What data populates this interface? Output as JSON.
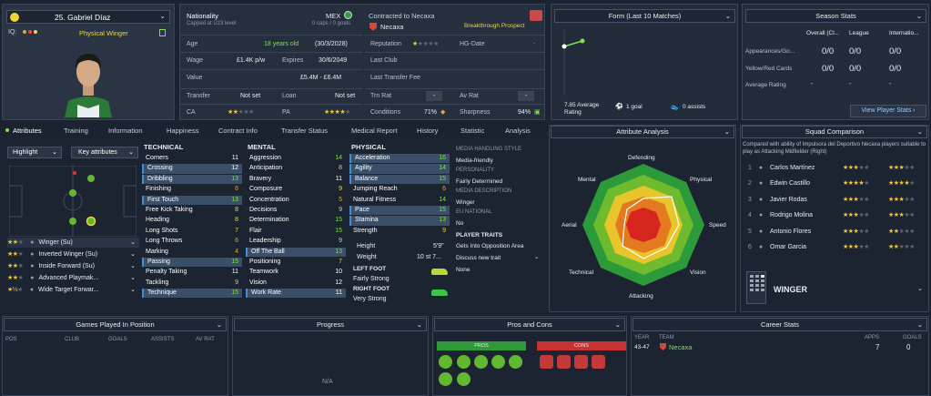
{
  "player": {
    "name": "25. Gabriel Díaz",
    "role": "Physical Winger",
    "iq_label": "IQ:"
  },
  "nation": {
    "label": "Nationality",
    "caps_note": "Capped at U23 level",
    "code": "MEX",
    "caps": "0 caps / 0 goals"
  },
  "contract": {
    "header": "Contracted to Necaxa",
    "club": "Necaxa",
    "tag": "Breakthrough Prospect"
  },
  "info": {
    "age_label": "Age",
    "age": "18 years old",
    "dob": "(30/3/2028)",
    "wage_label": "Wage",
    "wage": "£1.4K p/w",
    "expires_label": "Expires",
    "expires": "30/6/2049",
    "value_label": "Value",
    "value": "£5.4M - £6.4M",
    "transfer_label": "Transfer",
    "transfer": "Not set",
    "loan_label": "Loan",
    "loan": "Not set",
    "ca_label": "CA",
    "pa_label": "PA",
    "reputation_label": "Reputation",
    "hgdate_label": "HG-Date",
    "lastclub_label": "Last Club",
    "lastfee_label": "Last Transfer Fee",
    "trnrat_label": "Trn Rat",
    "trnrat": "-",
    "avrat_label": "Av Rat",
    "avrat": "-",
    "conditions_label": "Conditions",
    "conditions": "71%",
    "sharpness_label": "Sharpness",
    "sharpness": "94%"
  },
  "form": {
    "title": "Form (Last 10 Matches)",
    "avg": "7.85 Average Rating",
    "goals": "1 goal",
    "assists": "0 assists"
  },
  "season": {
    "title": "Season Stats",
    "cols": [
      "Overall (Cl...",
      "League",
      "Internatio..."
    ],
    "rows": [
      {
        "label": "Appearances/Go...",
        "v": [
          "0/0",
          "0/0",
          "0/0"
        ]
      },
      {
        "label": "Yellow/Red Cards",
        "v": [
          "0/0",
          "0/0",
          "0/0"
        ]
      },
      {
        "label": "Average Rating",
        "v": [
          "-",
          "-",
          "-"
        ]
      }
    ],
    "button": "View Player Stats"
  },
  "tabs": [
    "Attributes",
    "Training",
    "Information",
    "Happiness",
    "Contract Info",
    "Transfer Status",
    "Medical Report",
    "History",
    "Statistic",
    "Analysis"
  ],
  "controls": {
    "highlight": "Highlight",
    "key_attr": "Key attributes"
  },
  "roles": [
    "Winger (Su)",
    "Inverted Winger (Su)",
    "Inside Forward (Su)",
    "Advanced Playmak...",
    "Wide Target Forwar..."
  ],
  "technical": {
    "title": "TECHNICAL",
    "items": [
      [
        "Corners",
        "11"
      ],
      [
        "Crossing",
        "12"
      ],
      [
        "Dribbling",
        "13"
      ],
      [
        "Finishing",
        "6"
      ],
      [
        "First Touch",
        "13"
      ],
      [
        "Free Kick Taking",
        "8"
      ],
      [
        "Heading",
        "8"
      ],
      [
        "Long Shots",
        "7"
      ],
      [
        "Long Throws",
        "6"
      ],
      [
        "Marking",
        "4"
      ],
      [
        "Passing",
        "15"
      ],
      [
        "Penalty Taking",
        "11"
      ],
      [
        "Tackling",
        "9"
      ],
      [
        "Technique",
        "15"
      ]
    ]
  },
  "mental": {
    "title": "MENTAL",
    "items": [
      [
        "Aggression",
        "14"
      ],
      [
        "Anticipation",
        "8"
      ],
      [
        "Bravery",
        "11"
      ],
      [
        "Composure",
        "9"
      ],
      [
        "Concentration",
        "5"
      ],
      [
        "Decisions",
        "9"
      ],
      [
        "Determination",
        "15"
      ],
      [
        "Flair",
        "15"
      ],
      [
        "Leadership",
        "9"
      ],
      [
        "Off The Ball",
        "13"
      ],
      [
        "Positioning",
        "7"
      ],
      [
        "Teamwork",
        "10"
      ],
      [
        "Vision",
        "12"
      ],
      [
        "Work Rate",
        "11"
      ]
    ]
  },
  "physical": {
    "title": "PHYSICAL",
    "items": [
      [
        "Acceleration",
        "16"
      ],
      [
        "Agility",
        "14"
      ],
      [
        "Balance",
        "15"
      ],
      [
        "Jumping Reach",
        "6"
      ],
      [
        "Natural Fitness",
        "14"
      ],
      [
        "Pace",
        "15"
      ],
      [
        "Stamina",
        "13"
      ],
      [
        "Strength",
        "9"
      ]
    ],
    "height_label": "Height",
    "height": "5'9\"",
    "weight_label": "Weight",
    "weight": "10 st 7..."
  },
  "feet": {
    "left_label": "LEFT FOOT",
    "left": "Fairly Strong",
    "right_label": "RIGHT FOOT",
    "right": "Very Strong"
  },
  "media": {
    "style_label": "MEDIA HANDLING STYLE",
    "style": "Media-friendly",
    "personality_label": "PERSONALITY",
    "personality": "Fairly Determined",
    "desc_label": "MEDIA DESCRIPTION",
    "desc": "Winger",
    "eu_label": "EU NATIONAL",
    "eu": "No",
    "traits_label": "PLAYER TRAITS",
    "trait1": "Gets Into Opposition Area",
    "trait2": "Discuss new trait",
    "trait3": "None"
  },
  "analysis": {
    "title": "Attribute Analysis",
    "labels": [
      "Defending",
      "Physical",
      "Speed",
      "Vision",
      "Attacking",
      "Technical",
      "Aerial",
      "Mental"
    ]
  },
  "squad": {
    "title": "Squad Comparison",
    "note": "Compared with ability of Impulsora del Deportivo Necaxa players suitable to play as Attacking Midfielder (Right)",
    "players": [
      "Carlos Martínez",
      "Edwin Castillo",
      "Javier Rodas",
      "Rodrigo Molina",
      "Antonio Flores",
      "Omar Garcia"
    ],
    "role": "WINGER"
  },
  "bottom": {
    "games": {
      "title": "Games Played In Position",
      "cols": [
        "POS",
        "CLUB",
        "GOALS",
        "ASSISTS",
        "AV RAT"
      ]
    },
    "progress": {
      "title": "Progress",
      "na": "N/A"
    },
    "proscons": {
      "title": "Pros and Cons",
      "pros": "PROS",
      "cons": "CONS"
    },
    "career": {
      "title": "Career Stats",
      "cols": [
        "YEAR",
        "TEAM",
        "APPS",
        "GOALS"
      ],
      "year": "43-47",
      "team": "Necaxa",
      "apps": "7",
      "goals": "0"
    }
  }
}
